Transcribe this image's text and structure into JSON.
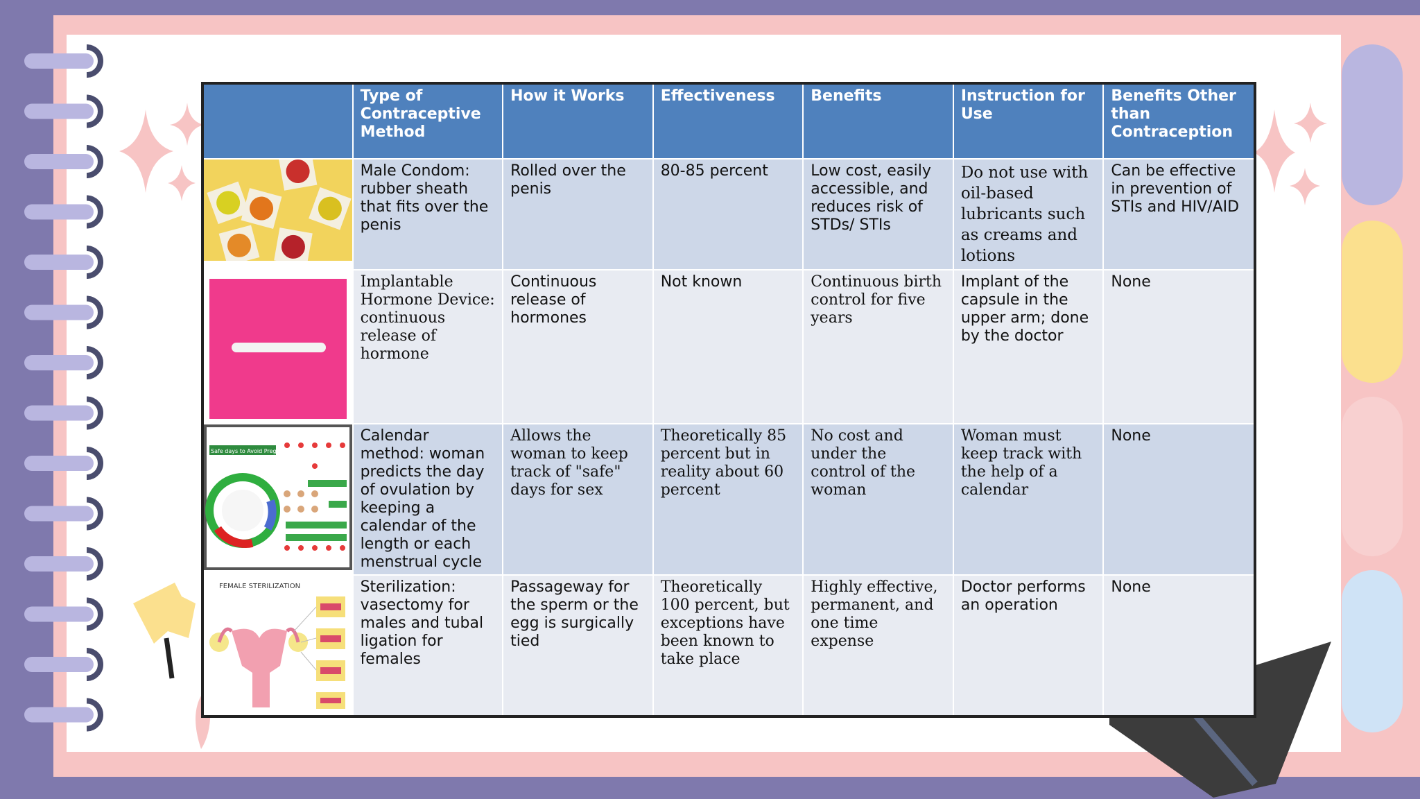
{
  "table": {
    "headers": [
      "",
      "Type of Contraceptive Method",
      "How it Works",
      "Effectiveness",
      "Benefits",
      "Instruction for Use",
      "Benefits Other than Contraception"
    ],
    "rows": [
      {
        "image": "condoms-photo",
        "method": "Male Condom: rubber sheath that fits over the penis",
        "how": "Rolled over the penis",
        "effectiveness": "80-85 percent",
        "benefits": "Low cost, easily accessible, and reduces risk of STDs/ STIs",
        "instruction": "Do not use with oil-based lubricants such as creams and lotions",
        "other": "Can be effective in prevention of STIs and HIV/AID"
      },
      {
        "image": "implant-photo",
        "method": "Implantable Hormone Device: continuous release of hormone",
        "how": "Continuous release of hormones",
        "effectiveness": "Not known",
        "benefits": "Continuous birth control for five years",
        "instruction": "Implant of the capsule in the upper arm; done by the doctor",
        "other": "None"
      },
      {
        "image": "calendar-chart",
        "image_caption": "Safe days to Avoid Pregnancy",
        "method": "Calendar method: woman predicts the day of ovulation by keeping a calendar of the length or each menstrual cycle",
        "how": "Allows the woman to keep track of \"safe\" days for sex",
        "effectiveness": "Theoretically 85 percent but in reality about 60 percent",
        "benefits": "No cost and under the control of the woman",
        "instruction": "Woman must keep track with the help of a calendar",
        "other": "None"
      },
      {
        "image": "sterilization-diagram",
        "image_caption": "FEMALE STERILIZATION",
        "method": "Sterilization: vasectomy for males and tubal ligation for females",
        "how": "Passageway for the sperm or the egg is surgically tied",
        "effectiveness": "Theoretically 100 percent, but exceptions have been known to take place",
        "benefits": "Highly effective, permanent, and one time expense",
        "instruction": "Doctor performs an operation",
        "other": "None"
      }
    ]
  },
  "colors": {
    "header": "#4f81bd",
    "row_dark": "#cdd7e8",
    "row_light": "#e8ebf2",
    "background": "#7f79ad",
    "frame": "#f7c4c4"
  }
}
